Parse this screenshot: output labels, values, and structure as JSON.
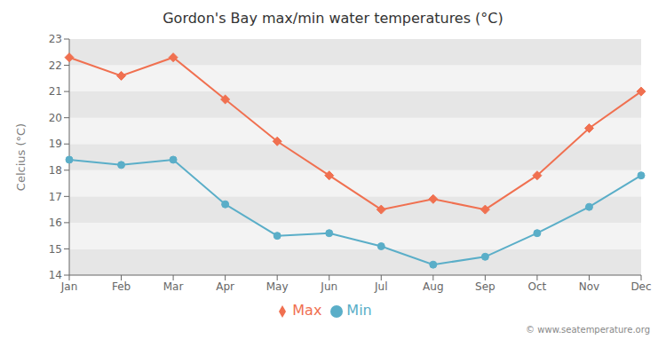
{
  "chart_data": {
    "type": "line",
    "title": "Gordon's Bay max/min water temperatures (°C)",
    "ylabel": "Celcius (°C)",
    "categories": [
      "Jan",
      "Feb",
      "Mar",
      "Apr",
      "May",
      "Jun",
      "Jul",
      "Aug",
      "Sep",
      "Oct",
      "Nov",
      "Dec"
    ],
    "series": [
      {
        "name": "Max",
        "color": "#f07050",
        "marker": "diamond",
        "values": [
          22.3,
          21.6,
          22.3,
          20.7,
          19.1,
          17.8,
          16.5,
          16.9,
          16.5,
          17.8,
          19.6,
          21.0
        ]
      },
      {
        "name": "Min",
        "color": "#5aaec8",
        "marker": "circle",
        "values": [
          18.4,
          18.2,
          18.4,
          16.7,
          15.5,
          15.6,
          15.1,
          14.4,
          14.7,
          15.6,
          16.6,
          17.8
        ]
      }
    ],
    "ylim": [
      14,
      23
    ],
    "yticks": [
      14,
      15,
      16,
      17,
      18,
      19,
      20,
      21,
      22,
      23
    ],
    "grid": false,
    "legend": "bottom",
    "annotations": [
      "© www.seatemperature.org"
    ]
  }
}
